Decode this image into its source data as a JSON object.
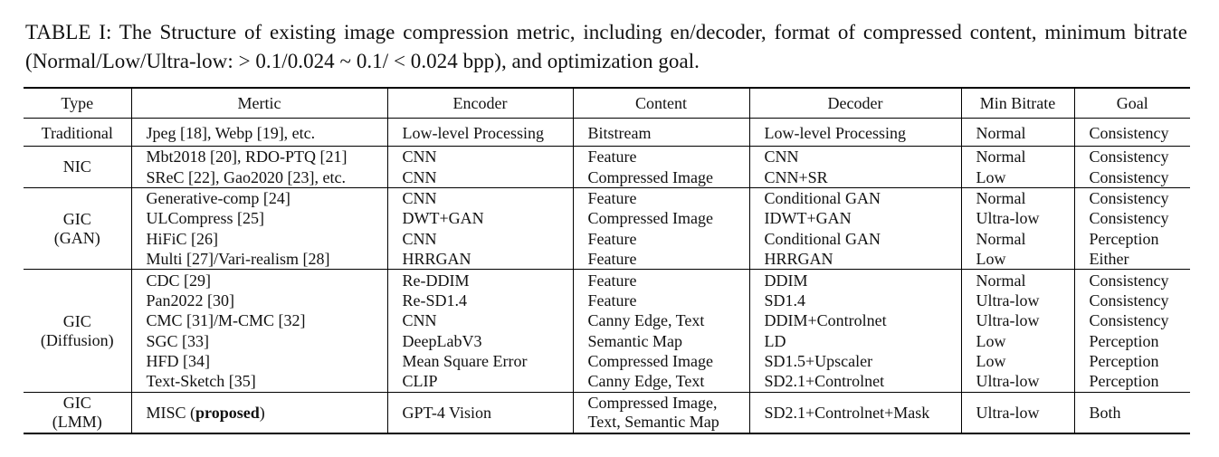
{
  "caption": "TABLE I: The Structure of existing image compression metric, including en/decoder, format of compressed content, minimum bitrate (Normal/Low/Ultra-low: > 0.1/0.024 ~ 0.1/ < 0.024 bpp), and optimization goal.",
  "headers": [
    "Type",
    "Mertic",
    "Encoder",
    "Content",
    "Decoder",
    "Min Bitrate",
    "Goal"
  ],
  "groups": [
    {
      "type": [
        "Traditional"
      ],
      "rows": [
        {
          "metric": "Jpeg [18], Webp [19], etc.",
          "encoder": "Low-level Processing",
          "content": "Bitstream",
          "decoder": "Low-level Processing",
          "bitrate": "Normal",
          "goal": "Consistency"
        }
      ]
    },
    {
      "type": [
        "NIC"
      ],
      "rows": [
        {
          "metric": "Mbt2018 [20], RDO-PTQ [21]",
          "encoder": "CNN",
          "content": "Feature",
          "decoder": "CNN",
          "bitrate": "Normal",
          "goal": "Consistency"
        },
        {
          "metric": "SReC [22], Gao2020 [23], etc.",
          "encoder": "CNN",
          "content": "Compressed Image",
          "decoder": "CNN+SR",
          "bitrate": "Low",
          "goal": "Consistency"
        }
      ]
    },
    {
      "type": [
        "GIC",
        "(GAN)"
      ],
      "rows": [
        {
          "metric": "Generative-comp [24]",
          "encoder": "CNN",
          "content": "Feature",
          "decoder": "Conditional GAN",
          "bitrate": "Normal",
          "goal": "Consistency"
        },
        {
          "metric": "ULCompress [25]",
          "encoder": "DWT+GAN",
          "content": "Compressed Image",
          "decoder": "IDWT+GAN",
          "bitrate": "Ultra-low",
          "goal": "Consistency"
        },
        {
          "metric": "HiFiC [26]",
          "encoder": "CNN",
          "content": "Feature",
          "decoder": "Conditional GAN",
          "bitrate": "Normal",
          "goal": "Perception"
        },
        {
          "metric": "Multi [27]/Vari-realism [28]",
          "encoder": "HRRGAN",
          "content": "Feature",
          "decoder": "HRRGAN",
          "bitrate": "Low",
          "goal": "Either"
        }
      ]
    },
    {
      "type": [
        "GIC",
        "(Diffusion)"
      ],
      "rows": [
        {
          "metric": "CDC [29]",
          "encoder": "Re-DDIM",
          "content": "Feature",
          "decoder": "DDIM",
          "bitrate": "Normal",
          "goal": "Consistency"
        },
        {
          "metric": "Pan2022 [30]",
          "encoder": "Re-SD1.4",
          "content": "Feature",
          "decoder": "SD1.4",
          "bitrate": "Ultra-low",
          "goal": "Consistency"
        },
        {
          "metric": "CMC [31]/M-CMC [32]",
          "encoder": "CNN",
          "content": "Canny Edge, Text",
          "decoder": "DDIM+Controlnet",
          "bitrate": "Ultra-low",
          "goal": "Consistency"
        },
        {
          "metric": "SGC [33]",
          "encoder": "DeepLabV3",
          "content": "Semantic Map",
          "decoder": "LD",
          "bitrate": "Low",
          "goal": "Perception"
        },
        {
          "metric": "HFD [34]",
          "encoder": "Mean Square Error",
          "content": "Compressed Image",
          "decoder": "SD1.5+Upscaler",
          "bitrate": "Low",
          "goal": "Perception"
        },
        {
          "metric": "Text-Sketch [35]",
          "encoder": "CLIP",
          "content": "Canny Edge, Text",
          "decoder": "SD2.1+Controlnet",
          "bitrate": "Ultra-low",
          "goal": "Perception"
        }
      ]
    },
    {
      "type": [
        "GIC",
        "(LMM)"
      ],
      "rows": [
        {
          "metric_name": "MISC",
          "metric_open": " (",
          "metric_bold": "proposed",
          "metric_close": ")",
          "encoder": "GPT-4 Vision",
          "content_lines": [
            "Compressed Image,",
            "Text, Semantic Map"
          ],
          "decoder": "SD2.1+Controlnet+Mask",
          "bitrate": "Ultra-low",
          "goal": "Both"
        }
      ]
    }
  ]
}
